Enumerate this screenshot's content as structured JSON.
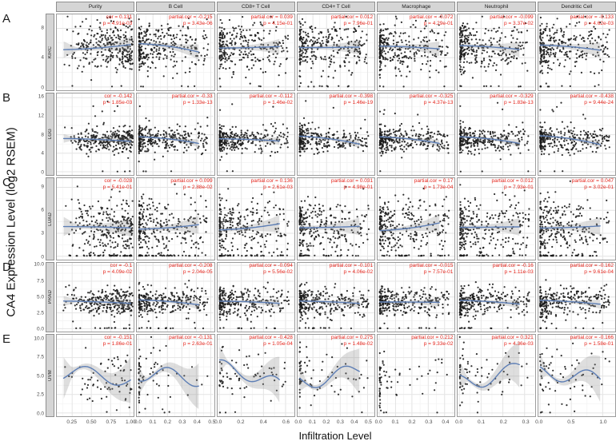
{
  "chart_data": {
    "type": "scatter",
    "x_axis_title": "Infiltration Level",
    "y_axis_title": "CA4 Expression Level (log2 RSEM)",
    "grid": true,
    "colors": {
      "annotation": "#e4251c",
      "trend": "#5d7eb5",
      "ribbon": "#8a8a8a",
      "point": "#1b1b1b",
      "strip_bg": "#d5d5d5",
      "strip_border": "#8f8f8f",
      "grid_major": "#e4e4e4",
      "grid_minor": "#f2f2f2",
      "panel_border": "#9c9c9c"
    },
    "columns": [
      {
        "label": "Purity",
        "stat_label": "cor",
        "xticks": [
          "0.25",
          "0.50",
          "0.75",
          "1.00"
        ],
        "xtick_vals": [
          0.25,
          0.5,
          0.75,
          1.0
        ],
        "xmin": 0.05,
        "xmax": 1.05
      },
      {
        "label": "B Cell",
        "stat_label": "partial.cor",
        "xticks": [
          "0.0",
          "0.1",
          "0.2",
          "0.3",
          "0.4",
          "0.5"
        ],
        "xtick_vals": [
          0,
          0.1,
          0.2,
          0.3,
          0.4,
          0.5
        ],
        "xmin": -0.012,
        "xmax": 0.52
      },
      {
        "label": "CD8+ T Cell",
        "stat_label": "partial.cor",
        "xticks": [
          "0.0",
          "0.2",
          "0.4",
          "0.6"
        ],
        "xtick_vals": [
          0,
          0.2,
          0.4,
          0.6
        ],
        "xmin": -0.015,
        "xmax": 0.68
      },
      {
        "label": "CD4+ T Cell",
        "stat_label": "partial.cor",
        "xticks": [
          "0.0",
          "0.1",
          "0.2",
          "0.3",
          "0.4",
          "0.5"
        ],
        "xtick_vals": [
          0,
          0.1,
          0.2,
          0.3,
          0.4,
          0.5
        ],
        "xmin": -0.012,
        "xmax": 0.55
      },
      {
        "label": "Macrophage",
        "stat_label": "partial.cor",
        "xticks": [
          "0.0",
          "0.1",
          "0.2",
          "0.3",
          "0.4"
        ],
        "xtick_vals": [
          0,
          0.1,
          0.2,
          0.3,
          0.4
        ],
        "xmin": -0.01,
        "xmax": 0.46
      },
      {
        "label": "Neutrophil",
        "stat_label": "partial.cor",
        "xticks": [
          "0.0",
          "0.1",
          "0.2",
          "0.3"
        ],
        "xtick_vals": [
          0,
          0.1,
          0.2,
          0.3
        ],
        "xmin": -0.008,
        "xmax": 0.345
      },
      {
        "label": "Dendritic Cell",
        "stat_label": "partial.cor",
        "xticks": [
          "0.0",
          "0.5",
          "1.0"
        ],
        "xtick_vals": [
          0,
          0.5,
          1.0
        ],
        "xmin": -0.025,
        "xmax": 1.2
      }
    ],
    "rows": [
      {
        "panel_letter": "A",
        "cancer_type": "KIRC",
        "yticks": [
          "0",
          "4",
          "8"
        ],
        "ytick_vals": [
          0,
          4,
          8
        ],
        "ymin": -0.45,
        "ymax": 9.9,
        "points_n": 300,
        "y_center": 5.4,
        "y_spread": 1.65,
        "zero_y_frac": 0.015,
        "panels": [
          {
            "cor": "0.131",
            "p": "4.91e-03"
          },
          {
            "cor": "-0.215",
            "p": "3.43e-06"
          },
          {
            "cor": "0.039",
            "p": "4.15e-01"
          },
          {
            "cor": "0.012",
            "p": "7.96e-01"
          },
          {
            "cor": "-0.072",
            "p": "4.29e-01",
            "x_zero_stack": 0.12
          },
          {
            "cor": "-0.099",
            "p": "3.37e-02"
          },
          {
            "cor": "-0.133",
            "p": "4.62e-03"
          }
        ]
      },
      {
        "panel_letter": "B",
        "cancer_type": "LGG",
        "yticks": [
          "0",
          "4",
          "8",
          "12",
          "16"
        ],
        "ytick_vals": [
          0,
          4,
          8,
          12,
          16
        ],
        "ymin": -0.7,
        "ymax": 16.9,
        "points_n": 300,
        "y_center": 6.9,
        "y_spread": 1.35,
        "zero_y_frac": 0.008,
        "outlier_max": 15.3,
        "panels": [
          {
            "cor": "-0.142",
            "p": "1.85e-03"
          },
          {
            "cor": "-0.33",
            "p": "1.33e-13"
          },
          {
            "cor": "-0.112",
            "p": "1.46e-02"
          },
          {
            "cor": "-0.398",
            "p": "1.46e-19"
          },
          {
            "cor": "-0.325",
            "p": "4.37e-13"
          },
          {
            "cor": "-0.329",
            "p": "1.83e-13"
          },
          {
            "cor": "-0.438",
            "p": "9.44e-24"
          }
        ]
      },
      {
        "panel_letter": "C",
        "cancer_type": "LUAD",
        "yticks": [
          "0",
          "3",
          "6",
          "9"
        ],
        "ytick_vals": [
          0,
          3,
          6,
          9
        ],
        "ymin": -0.45,
        "ymax": 10.2,
        "points_n": 300,
        "y_center": 3.8,
        "y_spread": 1.85,
        "zero_y_frac": 0.11,
        "panels": [
          {
            "cor": "-0.028",
            "p": "5.41e-01"
          },
          {
            "cor": "0.099",
            "p": "2.88e-02"
          },
          {
            "cor": "0.136",
            "p": "2.61e-03"
          },
          {
            "cor": "0.031",
            "p": "4.98e-01"
          },
          {
            "cor": "0.17",
            "p": "1.73e-04"
          },
          {
            "cor": "0.012",
            "p": "7.93e-01"
          },
          {
            "cor": "0.047",
            "p": "3.02e-01"
          }
        ]
      },
      {
        "panel_letter": "D",
        "cancer_type": "PRAD",
        "yticks": [
          "0.0",
          "2.5",
          "5.0",
          "7.5",
          "10.0"
        ],
        "ytick_vals": [
          0,
          2.5,
          5,
          7.5,
          10
        ],
        "ymin": -0.45,
        "ymax": 10.4,
        "points_n": 290,
        "y_center": 4.2,
        "y_spread": 1.15,
        "zero_y_frac": 0.05,
        "panels": [
          {
            "cor": "-0.1",
            "p": "4.09e-02"
          },
          {
            "cor": "-0.208",
            "p": "2.04e-05"
          },
          {
            "cor": "-0.094",
            "p": "5.56e-02"
          },
          {
            "cor": "-0.101",
            "p": "4.06e-02"
          },
          {
            "cor": "-0.015",
            "p": "7.57e-01"
          },
          {
            "cor": "-0.16",
            "p": "1.11e-03"
          },
          {
            "cor": "-0.162",
            "p": "9.61e-04"
          }
        ]
      },
      {
        "panel_letter": "E",
        "cancer_type": "UVM",
        "yticks": [
          "0.0",
          "2.5",
          "5.0",
          "7.5",
          "10.0"
        ],
        "ytick_vals": [
          0,
          2.5,
          5,
          7.5,
          10
        ],
        "ymin": -0.45,
        "ymax": 10.6,
        "points_n": 72,
        "y_center": 5.0,
        "y_spread": 1.9,
        "zero_y_frac": 0.03,
        "wavy": true,
        "panels": [
          {
            "cor": "-0.151",
            "p": "1.86e-01"
          },
          {
            "cor": "-0.131",
            "p": "2.63e-01",
            "x_zero_stack": 0.32
          },
          {
            "cor": "-0.428",
            "p": "1.05e-04",
            "x_zero_stack": 0.05
          },
          {
            "cor": "0.275",
            "p": "1.48e-02",
            "x_zero_stack": 0.16
          },
          {
            "cor": "0.212",
            "p": "9.33e-02",
            "x_zero_stack": 0.45,
            "trend_hidden": true
          },
          {
            "cor": "0.321",
            "p": "4.36e-03",
            "x_zero_stack": 0.12
          },
          {
            "cor": "-0.166",
            "p": "1.58e-01",
            "x_zero_stack": 0.05
          }
        ]
      }
    ]
  }
}
